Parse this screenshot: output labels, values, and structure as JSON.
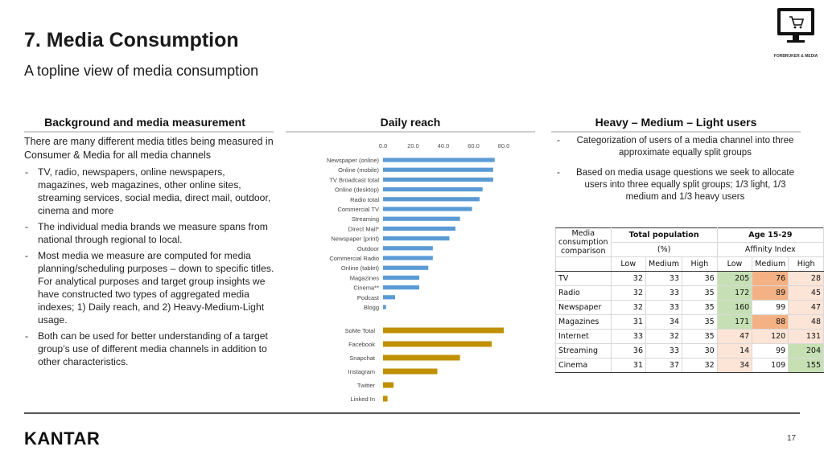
{
  "header": {
    "title": "7. Media Consumption",
    "subtitle": "A topline view of media consumption",
    "logo_text": "FORBRUKER & MEDIA"
  },
  "columns": {
    "left_heading": "Background and media measurement",
    "middle_heading": "Daily reach",
    "right_heading": "Heavy – Medium – Light users"
  },
  "left": {
    "intro": "There are many different media titles being measured in Consumer & Media for all media channels",
    "bullets": [
      "TV, radio, newspapers, online newspapers, magazines, web magazines, other online sites, streaming services, social media, direct mail, outdoor, cinema and more",
      "The individual media brands we measure spans from national through regional to local.",
      "Most media we measure are computed for media planning/scheduling purposes – down to specific titles. For analytical purposes and target group insights we have constructed two types of aggregated media indexes; 1) Daily reach, and 2) Heavy-Medium-Light usage.",
      "Both can be used for better understanding of a target group’s use of different media channels in addition to other characteristics."
    ]
  },
  "right": {
    "bullets": [
      "Categorization of users of a media channel into three approximate equally split groups",
      "Based on media usage questions we seek to allocate users into three equally split groups; 1/3 light, 1/3 medium and 1/3 heavy users"
    ]
  },
  "table": {
    "col1_header": [
      "Media",
      "consumption",
      "comparison"
    ],
    "group1": "Total population",
    "group1_sub": "(%)",
    "group2": "Age 15-29",
    "group2_sub": "Affinity Index",
    "sub_headers": [
      "Low",
      "Medium",
      "High",
      "Low",
      "Medium",
      "High"
    ],
    "rows": [
      {
        "label": "TV",
        "total": [
          32,
          33,
          36
        ],
        "age": [
          205,
          76,
          28
        ]
      },
      {
        "label": "Radio",
        "total": [
          32,
          33,
          35
        ],
        "age": [
          172,
          89,
          45
        ]
      },
      {
        "label": "Newspaper",
        "total": [
          32,
          33,
          35
        ],
        "age": [
          160,
          99,
          47
        ]
      },
      {
        "label": "Magazines",
        "total": [
          31,
          34,
          35
        ],
        "age": [
          171,
          88,
          48
        ]
      },
      {
        "label": "Internet",
        "total": [
          33,
          32,
          35
        ],
        "age": [
          47,
          120,
          131
        ]
      },
      {
        "label": "Streaming",
        "total": [
          36,
          33,
          30
        ],
        "age": [
          14,
          99,
          204
        ]
      },
      {
        "label": "Cinema",
        "total": [
          31,
          37,
          32
        ],
        "age": [
          34,
          109,
          155
        ]
      }
    ],
    "highlight_colors": {
      "high": "#c6e0b4",
      "low": "#f4b183",
      "light": "#fce4d6"
    }
  },
  "chart_data": [
    {
      "type": "bar",
      "orientation": "horizontal",
      "title": "Daily reach",
      "x_ticks": [
        "0.0",
        "20.0",
        "40.0",
        "60.0",
        "80.0"
      ],
      "xlim": [
        0,
        80
      ],
      "color": "#5b9bd5",
      "categories": [
        "Newspaper (online)",
        "Online (mobile)",
        "TV Broadcast total",
        "Online (desktop)",
        "Radio total",
        "Commercial TV",
        "Streaming",
        "Direct Mail*",
        "Newspaper (print)",
        "Outdoor",
        "Commercial Radio",
        "Online (tablet)",
        "Magazines",
        "Cinema**",
        "Podcast",
        "Blogg"
      ],
      "values": [
        74,
        73,
        73,
        66,
        64,
        59,
        51,
        48,
        44,
        33,
        33,
        30,
        24,
        24,
        8,
        2
      ]
    },
    {
      "type": "bar",
      "orientation": "horizontal",
      "color": "#bf9000",
      "categories": [
        "SoMe Total",
        "Facebook",
        "Snapchat",
        "Instagram",
        "Twitter",
        "Linked In"
      ],
      "values": [
        80,
        72,
        51,
        36,
        7,
        3
      ]
    }
  ],
  "footer": {
    "brand": "KANTAR",
    "page_number": "17"
  }
}
